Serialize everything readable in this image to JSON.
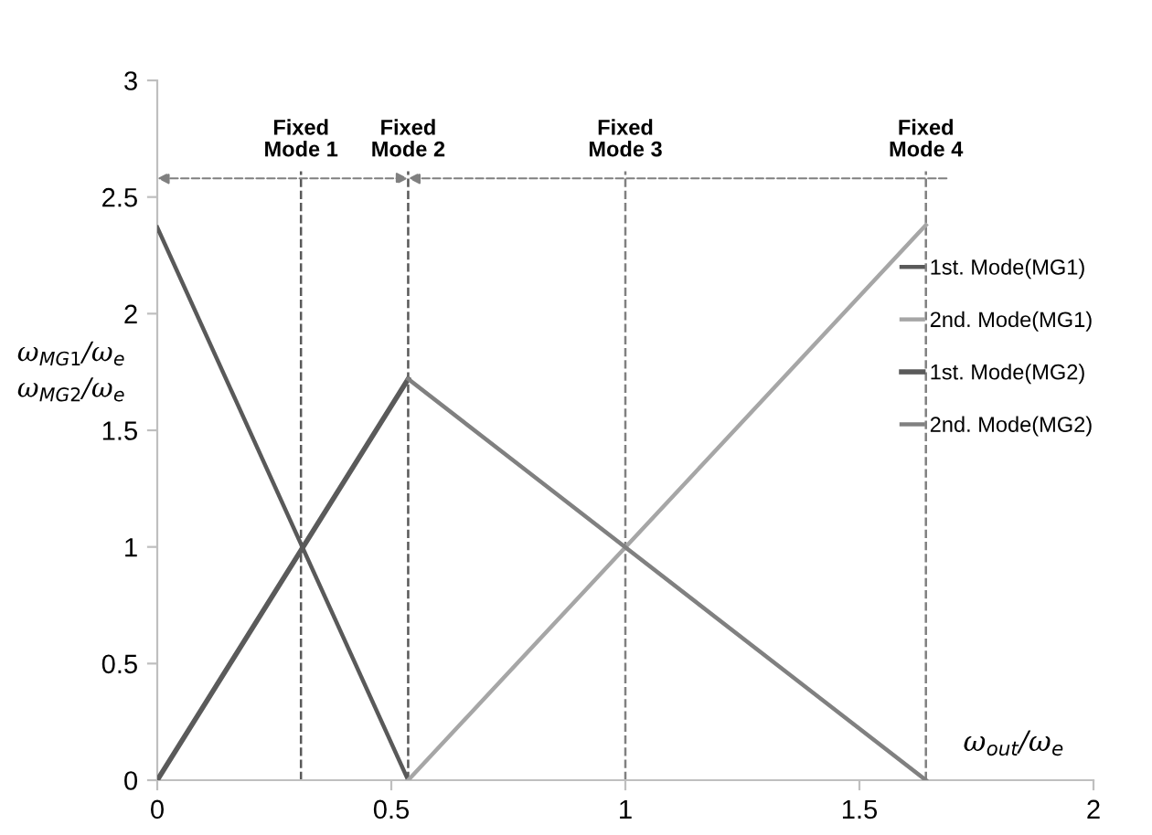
{
  "chart_data": {
    "type": "line",
    "xlabel": "ω$_{out}$/ω$_{e}$",
    "ylabel": "ω$_{MG1}$/ω$_{e}$\nω$_{MG2}$/ω$_{e}$",
    "series": [
      {
        "name": "1st. Mode(MG1)",
        "color": "#595959",
        "x": [
          0,
          0.536
        ],
        "values": [
          2.37,
          0
        ]
      },
      {
        "name": "2nd. Mode(MG1)",
        "color": "#a6a6a6",
        "x": [
          0.536,
          1.642
        ],
        "values": [
          0,
          2.38
        ]
      },
      {
        "name": "1st. Mode(MG2)",
        "color": "#5a5a5a",
        "x": [
          0,
          0.536
        ],
        "values": [
          0,
          1.72
        ]
      },
      {
        "name": "2nd. Mode(MG2)",
        "color": "#808080",
        "x": [
          0.536,
          1.642
        ],
        "values": [
          1.72,
          0
        ]
      }
    ],
    "ref_lines": [
      {
        "axis": "x",
        "value": 0.307,
        "label": "Fixed\nMode 1",
        "color": "#595959",
        "line_style": "dashed"
      },
      {
        "axis": "x",
        "value": 0.536,
        "label": "Fixed\nMode 2",
        "color": "#595959",
        "line_style": "dashed"
      },
      {
        "axis": "x",
        "value": 1.0,
        "label": "Fixed\nMode 3",
        "color": "#808080",
        "line_style": "dashed"
      },
      {
        "axis": "x",
        "value": 1.642,
        "label": "Fixed\nMode 4",
        "color": "#808080",
        "line_style": "dashed"
      }
    ],
    "xlim": [
      0,
      2
    ],
    "xticks": [
      0,
      0.5,
      1,
      1.5,
      2
    ],
    "ylim": [
      0,
      3
    ],
    "yticks": [
      0,
      0.5,
      1,
      1.5,
      2,
      2.5,
      3
    ],
    "grid": false,
    "legend": "right",
    "marker": "none",
    "line_style": "solid"
  }
}
